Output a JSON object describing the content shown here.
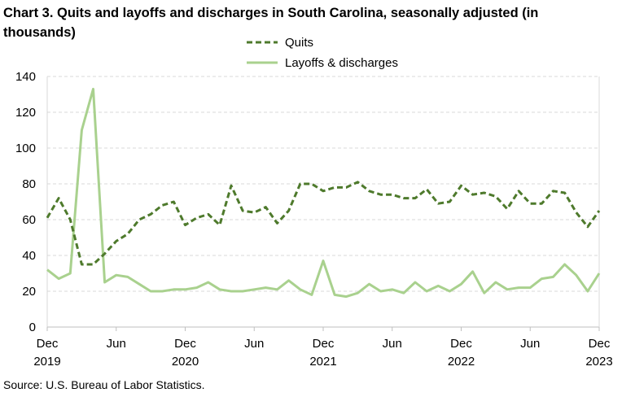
{
  "chart_data": {
    "type": "line",
    "title": "Chart 3. Quits and layoffs and discharges in South Carolina, seasonally adjusted (in thousands)",
    "xlabel": "",
    "ylabel": "",
    "ylim": [
      0,
      140
    ],
    "yticks": [
      "0",
      "20",
      "40",
      "60",
      "80",
      "100",
      "120",
      "140"
    ],
    "x": [
      "Dec 2019",
      "Jan 2020",
      "Feb 2020",
      "Mar 2020",
      "Apr 2020",
      "May 2020",
      "Jun 2020",
      "Jul 2020",
      "Aug 2020",
      "Sep 2020",
      "Oct 2020",
      "Nov 2020",
      "Dec 2020",
      "Jan 2021",
      "Feb 2021",
      "Mar 2021",
      "Apr 2021",
      "May 2021",
      "Jun 2021",
      "Jul 2021",
      "Aug 2021",
      "Sep 2021",
      "Oct 2021",
      "Nov 2021",
      "Dec 2021",
      "Jan 2022",
      "Feb 2022",
      "Mar 2022",
      "Apr 2022",
      "May 2022",
      "Jun 2022",
      "Jul 2022",
      "Aug 2022",
      "Sep 2022",
      "Oct 2022",
      "Nov 2022",
      "Dec 2022",
      "Jan 2023",
      "Feb 2023",
      "Mar 2023",
      "Apr 2023",
      "May 2023",
      "Jun 2023",
      "Jul 2023",
      "Aug 2023",
      "Sep 2023",
      "Oct 2023",
      "Nov 2023",
      "Dec 2023"
    ],
    "xticks": [
      {
        "month": "Dec",
        "year": "2019",
        "index": 0
      },
      {
        "month": "Jun",
        "year": "",
        "index": 6
      },
      {
        "month": "Dec",
        "year": "2020",
        "index": 12
      },
      {
        "month": "Jun",
        "year": "",
        "index": 18
      },
      {
        "month": "Dec",
        "year": "2021",
        "index": 24
      },
      {
        "month": "Jun",
        "year": "",
        "index": 30
      },
      {
        "month": "Dec",
        "year": "2022",
        "index": 36
      },
      {
        "month": "Jun",
        "year": "",
        "index": 42
      },
      {
        "month": "Dec",
        "year": "2023",
        "index": 48
      }
    ],
    "series": [
      {
        "name": "Quits",
        "style": "dashed",
        "color": "#4e7a2c",
        "values": [
          61,
          72,
          60,
          35,
          35,
          41,
          48,
          52,
          60,
          63,
          68,
          70,
          57,
          61,
          63,
          57,
          79,
          65,
          64,
          67,
          58,
          65,
          80,
          80,
          76,
          78,
          78,
          81,
          76,
          74,
          74,
          72,
          72,
          77,
          69,
          70,
          79,
          74,
          75,
          73,
          66,
          76,
          69,
          69,
          76,
          75,
          64,
          56,
          65
        ]
      },
      {
        "name": "Layoffs & discharges",
        "style": "solid",
        "color": "#a9d18e",
        "values": [
          32,
          27,
          30,
          110,
          133,
          25,
          29,
          28,
          24,
          20,
          20,
          21,
          21,
          22,
          25,
          21,
          20,
          20,
          21,
          22,
          21,
          26,
          21,
          18,
          37,
          18,
          17,
          19,
          24,
          20,
          21,
          19,
          25,
          20,
          23,
          20,
          24,
          31,
          19,
          25,
          21,
          22,
          22,
          27,
          28,
          35,
          29,
          20,
          30
        ]
      }
    ],
    "legend_position": "top-center"
  },
  "source": "Source: U.S. Bureau of Labor Statistics."
}
